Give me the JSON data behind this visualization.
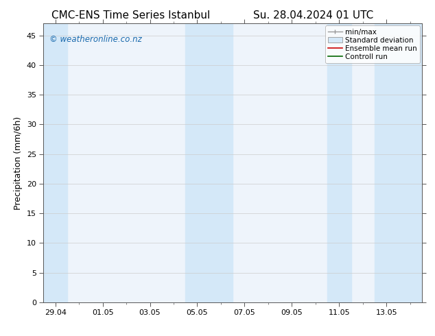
{
  "title_left": "CMC-ENS Time Series Istanbul",
  "title_right": "Su. 28.04.2024 01 UTC",
  "ylabel": "Precipitation (mm/6h)",
  "watermark": "© weatheronline.co.nz",
  "watermark_color": "#1a6aad",
  "background_color": "#ffffff",
  "plot_bg_color": "#eef4fb",
  "ylim": [
    0,
    47
  ],
  "yticks": [
    0,
    5,
    10,
    15,
    20,
    25,
    30,
    35,
    40,
    45
  ],
  "xtick_labels": [
    "29.04",
    "01.05",
    "03.05",
    "05.05",
    "07.05",
    "09.05",
    "11.05",
    "13.05"
  ],
  "xtick_positions": [
    0,
    2,
    4,
    6,
    8,
    10,
    12,
    14
  ],
  "xlim": [
    -0.5,
    15.5
  ],
  "shaded_bands": [
    {
      "x_start": -0.5,
      "x_end": 0.5,
      "color": "#d4e8f8"
    },
    {
      "x_start": 5.5,
      "x_end": 7.5,
      "color": "#d4e8f8"
    },
    {
      "x_start": 11.5,
      "x_end": 12.5,
      "color": "#d4e8f8"
    },
    {
      "x_start": 13.5,
      "x_end": 15.5,
      "color": "#d4e8f8"
    }
  ],
  "legend_items": [
    {
      "label": "min/max",
      "type": "errorbar",
      "color": "#999999"
    },
    {
      "label": "Standard deviation",
      "type": "box",
      "color": "#d4e8f8",
      "edgecolor": "#999999"
    },
    {
      "label": "Ensemble mean run",
      "type": "line",
      "color": "#cc0000"
    },
    {
      "label": "Controll run",
      "type": "line",
      "color": "#006600"
    }
  ],
  "title_fontsize": 11,
  "tick_fontsize": 8,
  "legend_fontsize": 7.5,
  "ylabel_fontsize": 9
}
